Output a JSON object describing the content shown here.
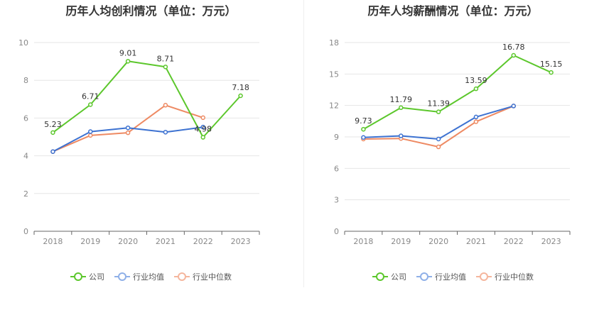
{
  "colors": {
    "company": "#5cc72c",
    "industry_avg": "#3d72d1",
    "industry_median": "#ee8a63",
    "company_legend": "#5cc72c",
    "industry_avg_legend": "#8fb0e8",
    "industry_median_legend": "#f5b69d"
  },
  "chart_data": [
    {
      "type": "line",
      "title": "历年人均创利情况（单位：万元）",
      "categories": [
        "2018",
        "2019",
        "2020",
        "2021",
        "2022",
        "2023"
      ],
      "ylim": [
        0,
        10
      ],
      "yticks": [
        0,
        2,
        4,
        6,
        8,
        10
      ],
      "grid": true,
      "legend_position": "bottom",
      "series": [
        {
          "name": "公司",
          "key": "company",
          "values": [
            5.23,
            6.71,
            9.01,
            8.71,
            4.98,
            7.18
          ],
          "labels": [
            "5.23",
            "6.71",
            "9.01",
            "8.71",
            "4.98",
            "7.18"
          ]
        },
        {
          "name": "行业均值",
          "key": "industry_avg",
          "values": [
            4.22,
            5.28,
            5.48,
            5.25,
            5.52,
            null
          ]
        },
        {
          "name": "行业中位数",
          "key": "industry_median",
          "values": [
            4.22,
            5.08,
            5.22,
            6.68,
            6.02,
            null
          ]
        }
      ]
    },
    {
      "type": "line",
      "title": "历年人均薪酬情况（单位：万元）",
      "categories": [
        "2018",
        "2019",
        "2020",
        "2021",
        "2022",
        "2023"
      ],
      "ylim": [
        0,
        18
      ],
      "yticks": [
        0,
        3,
        6,
        9,
        12,
        15,
        18
      ],
      "grid": true,
      "legend_position": "bottom",
      "series": [
        {
          "name": "公司",
          "key": "company",
          "values": [
            9.73,
            11.79,
            11.39,
            13.59,
            16.78,
            15.15
          ],
          "labels": [
            "9.73",
            "11.79",
            "11.39",
            "13.59",
            "16.78",
            "15.15"
          ]
        },
        {
          "name": "行业均值",
          "key": "industry_avg",
          "values": [
            8.95,
            9.1,
            8.8,
            10.9,
            11.95,
            null
          ]
        },
        {
          "name": "行业中位数",
          "key": "industry_median",
          "values": [
            8.8,
            8.85,
            8.05,
            10.45,
            11.95,
            null
          ]
        }
      ]
    }
  ],
  "legend": {
    "company": "公司",
    "industry_avg": "行业均值",
    "industry_median": "行业中位数"
  }
}
